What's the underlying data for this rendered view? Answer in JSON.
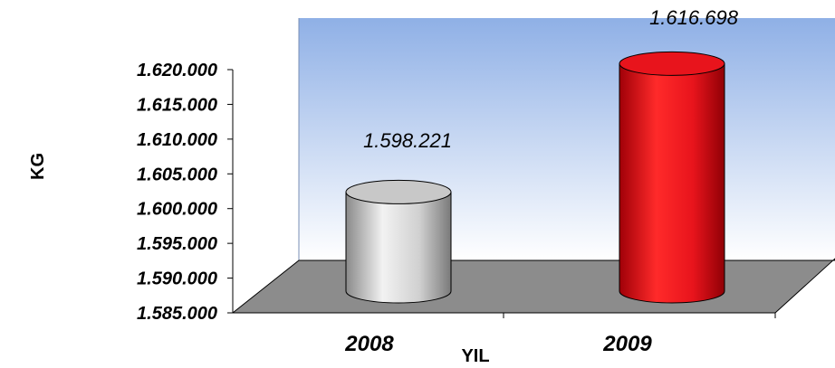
{
  "chart_data": {
    "type": "bar",
    "style": "3d-cylinder",
    "categories": [
      "2008",
      "2009"
    ],
    "values": [
      1598221,
      1616698
    ],
    "value_labels": [
      "1.598.221",
      "1.616.698"
    ],
    "colors": [
      "#c8c8c8",
      "#e8141c"
    ],
    "xlabel": "YIL",
    "ylabel": "KG",
    "ylim": [
      1585000,
      1620000
    ],
    "yticks": [
      1585000,
      1590000,
      1595000,
      1600000,
      1605000,
      1610000,
      1615000,
      1620000
    ],
    "ytick_labels": [
      "1.585.000",
      "1.590.000",
      "1.595.000",
      "1.600.000",
      "1.605.000",
      "1.610.000",
      "1.615.000",
      "1.620.000"
    ],
    "grid": false,
    "legend": "none",
    "wall_color": "#8fb0e6",
    "floor_color": "#8c8c8c"
  }
}
